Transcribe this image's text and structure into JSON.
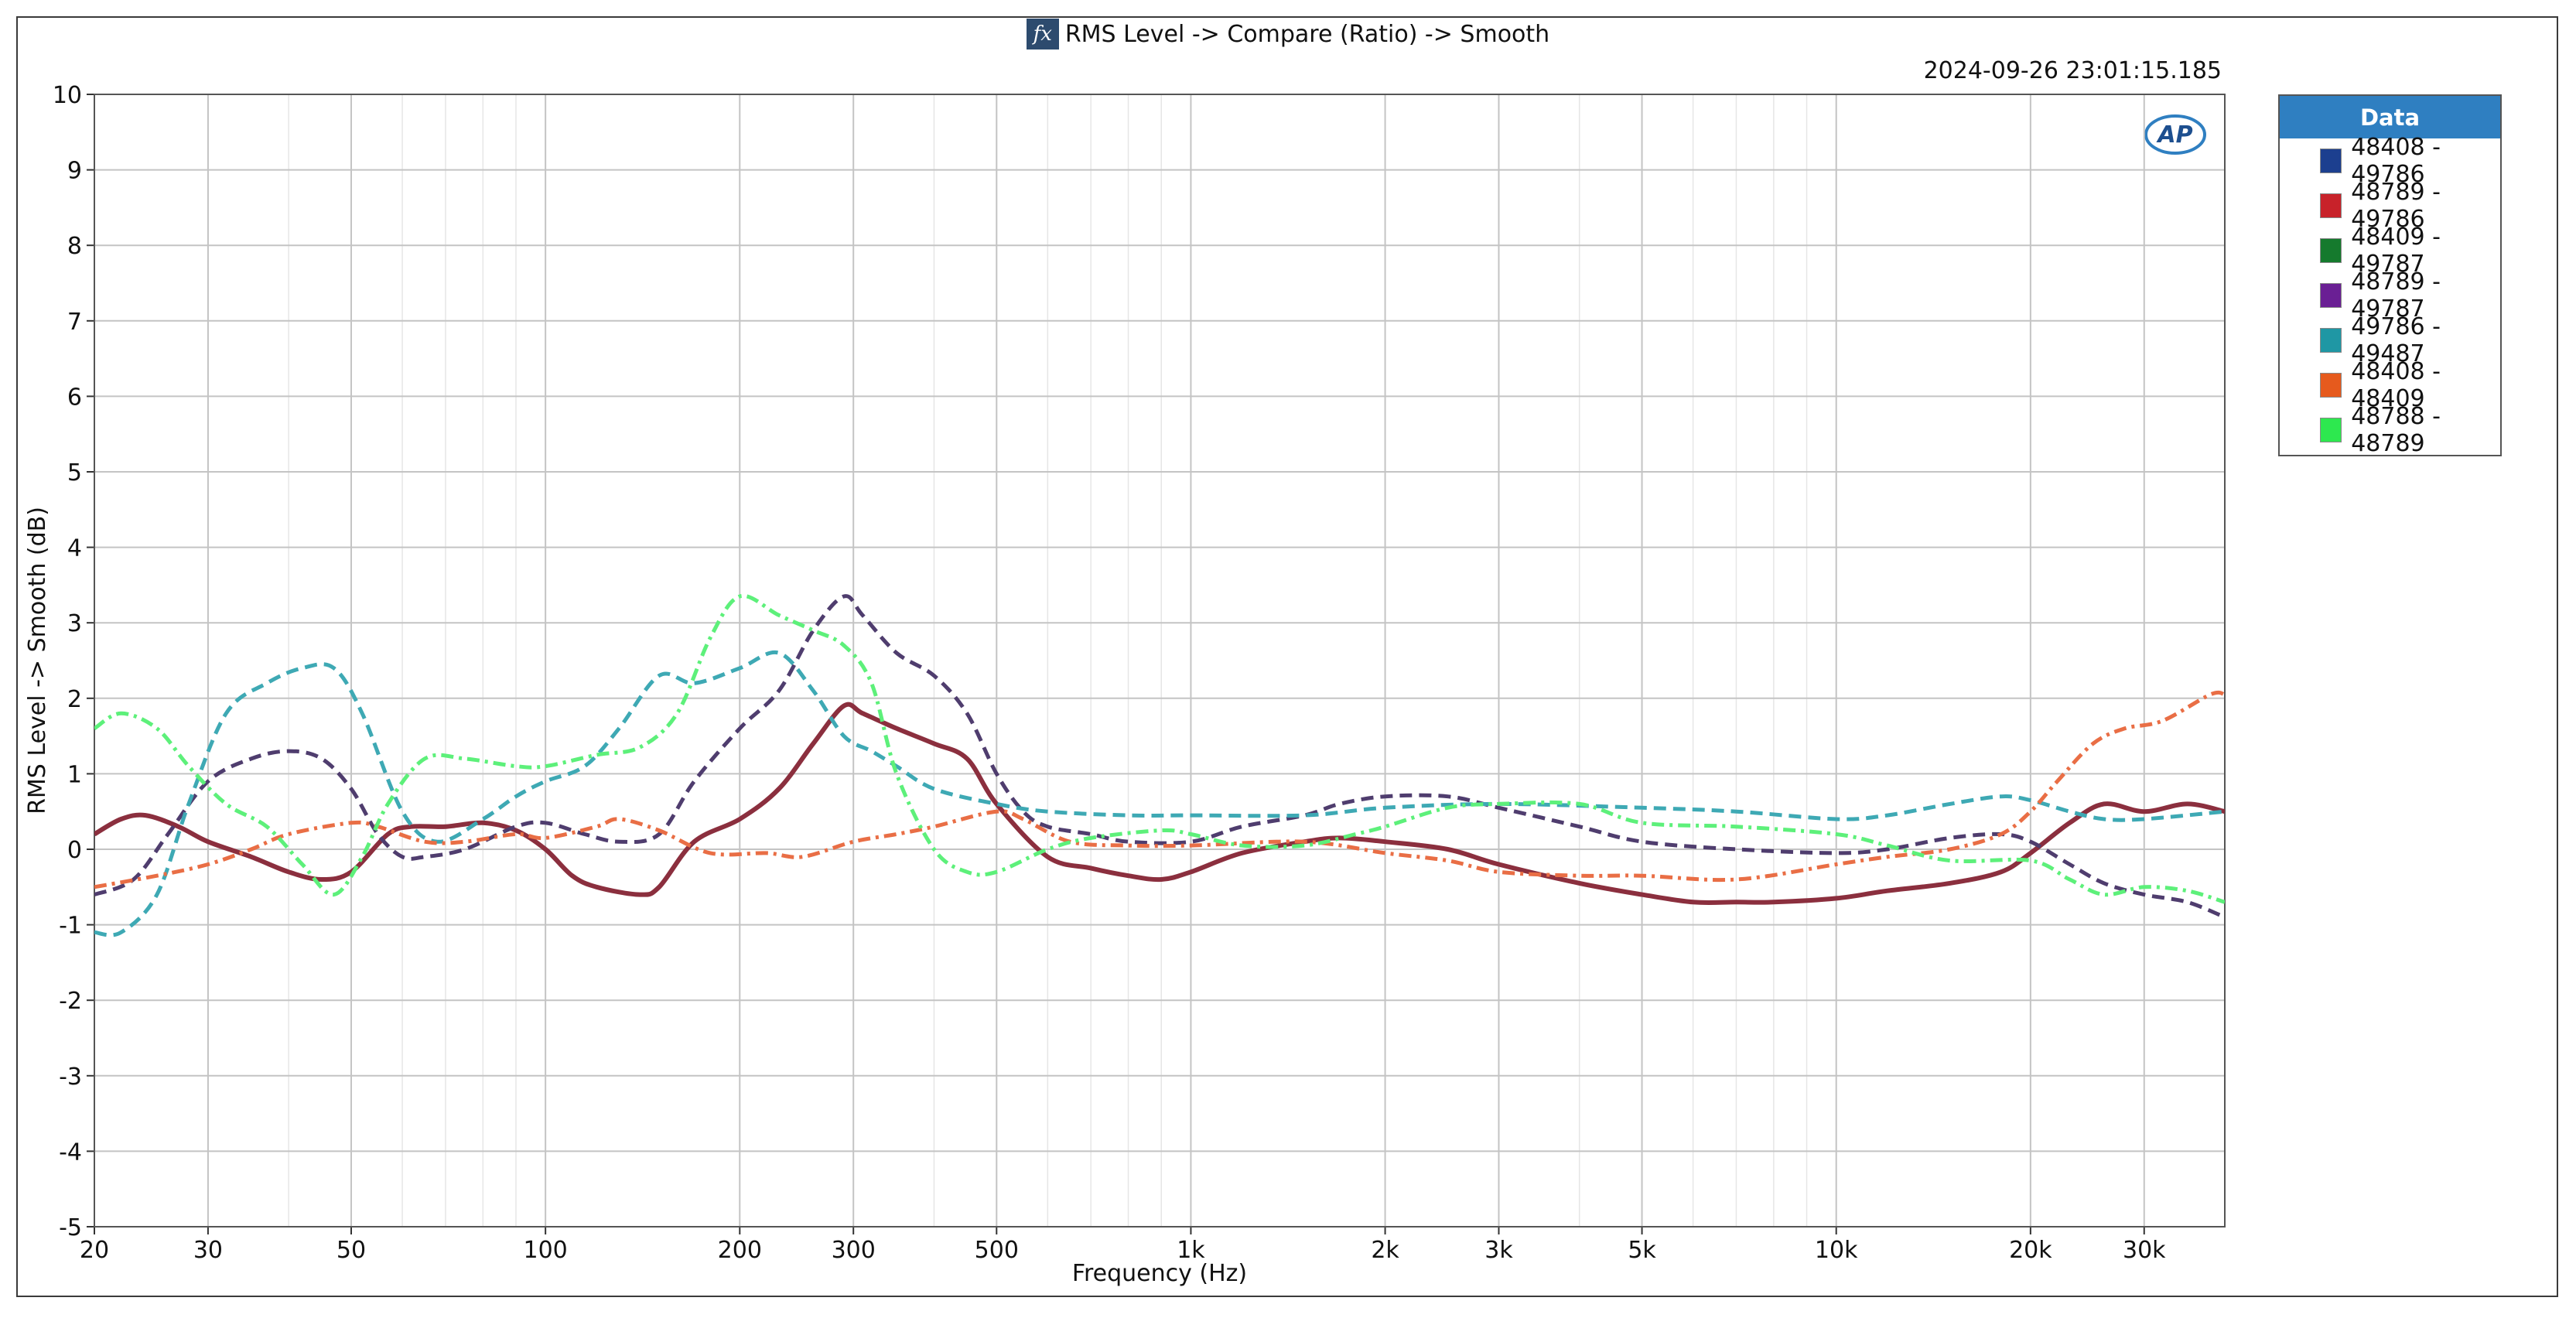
{
  "title": "RMS Level -> Compare (Ratio) -> Smooth",
  "timestamp": "2024-09-26 23:01:15.185",
  "logo_text": "AP",
  "legend": {
    "header": "Data",
    "items": [
      {
        "label": "48408 - 49786",
        "color": "#1c3f8f"
      },
      {
        "label": "48789 - 49786",
        "color": "#c8222a"
      },
      {
        "label": "48409 - 49787",
        "color": "#157a2d"
      },
      {
        "label": "48789 - 49787",
        "color": "#6a1f94"
      },
      {
        "label": "49786 - 49487",
        "color": "#1f97a4"
      },
      {
        "label": "48408 - 48409",
        "color": "#e65a1d"
      },
      {
        "label": "48788 - 48789",
        "color": "#2de84f"
      }
    ]
  },
  "chart_data": {
    "type": "line",
    "xlabel": "Frequency (Hz)",
    "ylabel": "RMS Level -> Smooth (dB)",
    "x_scale": "log",
    "xlim": [
      20,
      40000
    ],
    "ylim": [
      -5,
      10
    ],
    "grid": true,
    "legend_position": "right",
    "x_ticks": [
      {
        "value": 20,
        "label": "20"
      },
      {
        "value": 30,
        "label": "30"
      },
      {
        "value": 50,
        "label": "50"
      },
      {
        "value": 100,
        "label": "100"
      },
      {
        "value": 200,
        "label": "200"
      },
      {
        "value": 300,
        "label": "300"
      },
      {
        "value": 500,
        "label": "500"
      },
      {
        "value": 1000,
        "label": "1k"
      },
      {
        "value": 2000,
        "label": "2k"
      },
      {
        "value": 3000,
        "label": "3k"
      },
      {
        "value": 5000,
        "label": "5k"
      },
      {
        "value": 10000,
        "label": "10k"
      },
      {
        "value": 20000,
        "label": "20k"
      },
      {
        "value": 30000,
        "label": "30k"
      }
    ],
    "y_ticks": [
      {
        "value": 10,
        "label": "10"
      },
      {
        "value": 9,
        "label": "9"
      },
      {
        "value": 8,
        "label": "8"
      },
      {
        "value": 7,
        "label": "7"
      },
      {
        "value": 6,
        "label": "6"
      },
      {
        "value": 5,
        "label": "5"
      },
      {
        "value": 4,
        "label": "4"
      },
      {
        "value": 3,
        "label": "3"
      },
      {
        "value": 2,
        "label": "2"
      },
      {
        "value": 1,
        "label": "1"
      },
      {
        "value": 0,
        "label": "0"
      },
      {
        "value": -1,
        "label": "-1"
      },
      {
        "value": -2,
        "label": "-2"
      },
      {
        "value": -3,
        "label": "-3"
      },
      {
        "value": -4,
        "label": "-4"
      },
      {
        "value": -5,
        "label": "-5"
      }
    ],
    "series": [
      {
        "name": "48789 - 49786",
        "color": "#8b2f3e",
        "dash": "solid",
        "points": [
          [
            20,
            0.2
          ],
          [
            22,
            0.4
          ],
          [
            24,
            0.45
          ],
          [
            27,
            0.3
          ],
          [
            30,
            0.1
          ],
          [
            35,
            -0.1
          ],
          [
            40,
            -0.3
          ],
          [
            45,
            -0.4
          ],
          [
            50,
            -0.3
          ],
          [
            57,
            0.2
          ],
          [
            62,
            0.3
          ],
          [
            70,
            0.3
          ],
          [
            80,
            0.35
          ],
          [
            90,
            0.25
          ],
          [
            100,
            0.0
          ],
          [
            110,
            -0.35
          ],
          [
            120,
            -0.5
          ],
          [
            140,
            -0.6
          ],
          [
            150,
            -0.5
          ],
          [
            170,
            0.1
          ],
          [
            200,
            0.4
          ],
          [
            230,
            0.8
          ],
          [
            260,
            1.4
          ],
          [
            290,
            1.9
          ],
          [
            310,
            1.8
          ],
          [
            350,
            1.6
          ],
          [
            400,
            1.4
          ],
          [
            450,
            1.2
          ],
          [
            500,
            0.6
          ],
          [
            600,
            -0.1
          ],
          [
            700,
            -0.25
          ],
          [
            800,
            -0.35
          ],
          [
            900,
            -0.4
          ],
          [
            1000,
            -0.3
          ],
          [
            1200,
            -0.05
          ],
          [
            1500,
            0.1
          ],
          [
            1700,
            0.15
          ],
          [
            2000,
            0.1
          ],
          [
            2500,
            0.0
          ],
          [
            3000,
            -0.2
          ],
          [
            4000,
            -0.45
          ],
          [
            5000,
            -0.6
          ],
          [
            6000,
            -0.7
          ],
          [
            7000,
            -0.7
          ],
          [
            8000,
            -0.7
          ],
          [
            10000,
            -0.65
          ],
          [
            12000,
            -0.55
          ],
          [
            15000,
            -0.45
          ],
          [
            18000,
            -0.3
          ],
          [
            20000,
            -0.05
          ],
          [
            23000,
            0.35
          ],
          [
            26000,
            0.6
          ],
          [
            30000,
            0.5
          ],
          [
            35000,
            0.6
          ],
          [
            40000,
            0.5
          ]
        ]
      },
      {
        "name": "48789 - 49787",
        "color": "#4f3d6e",
        "dash": "dashed",
        "points": [
          [
            20,
            -0.6
          ],
          [
            23,
            -0.4
          ],
          [
            26,
            0.2
          ],
          [
            30,
            0.9
          ],
          [
            35,
            1.2
          ],
          [
            40,
            1.3
          ],
          [
            45,
            1.2
          ],
          [
            50,
            0.8
          ],
          [
            55,
            0.2
          ],
          [
            60,
            -0.1
          ],
          [
            65,
            -0.1
          ],
          [
            75,
            0.0
          ],
          [
            90,
            0.3
          ],
          [
            100,
            0.35
          ],
          [
            115,
            0.2
          ],
          [
            130,
            0.1
          ],
          [
            150,
            0.2
          ],
          [
            170,
            0.9
          ],
          [
            200,
            1.6
          ],
          [
            230,
            2.1
          ],
          [
            260,
            2.9
          ],
          [
            290,
            3.35
          ],
          [
            310,
            3.1
          ],
          [
            350,
            2.6
          ],
          [
            400,
            2.3
          ],
          [
            450,
            1.8
          ],
          [
            500,
            1.0
          ],
          [
            550,
            0.5
          ],
          [
            600,
            0.3
          ],
          [
            700,
            0.2
          ],
          [
            800,
            0.1
          ],
          [
            1000,
            0.1
          ],
          [
            1200,
            0.3
          ],
          [
            1500,
            0.45
          ],
          [
            1700,
            0.6
          ],
          [
            2000,
            0.7
          ],
          [
            2500,
            0.7
          ],
          [
            3000,
            0.55
          ],
          [
            4000,
            0.3
          ],
          [
            5000,
            0.1
          ],
          [
            7000,
            0.0
          ],
          [
            10000,
            -0.05
          ],
          [
            12000,
            0.0
          ],
          [
            15000,
            0.15
          ],
          [
            18000,
            0.2
          ],
          [
            20000,
            0.1
          ],
          [
            23000,
            -0.2
          ],
          [
            26000,
            -0.45
          ],
          [
            30000,
            -0.6
          ],
          [
            35000,
            -0.7
          ],
          [
            40000,
            -0.9
          ]
        ]
      },
      {
        "name": "49786 - 49487",
        "color": "#3ea9b4",
        "dash": "dashed",
        "points": [
          [
            20,
            -1.1
          ],
          [
            22,
            -1.1
          ],
          [
            25,
            -0.6
          ],
          [
            28,
            0.6
          ],
          [
            32,
            1.8
          ],
          [
            37,
            2.2
          ],
          [
            42,
            2.4
          ],
          [
            47,
            2.4
          ],
          [
            52,
            1.8
          ],
          [
            60,
            0.5
          ],
          [
            68,
            0.1
          ],
          [
            80,
            0.4
          ],
          [
            90,
            0.7
          ],
          [
            100,
            0.9
          ],
          [
            115,
            1.1
          ],
          [
            130,
            1.6
          ],
          [
            150,
            2.3
          ],
          [
            170,
            2.2
          ],
          [
            200,
            2.4
          ],
          [
            230,
            2.6
          ],
          [
            260,
            2.1
          ],
          [
            290,
            1.5
          ],
          [
            320,
            1.3
          ],
          [
            350,
            1.1
          ],
          [
            400,
            0.8
          ],
          [
            500,
            0.6
          ],
          [
            600,
            0.5
          ],
          [
            800,
            0.45
          ],
          [
            1000,
            0.45
          ],
          [
            1500,
            0.45
          ],
          [
            2000,
            0.55
          ],
          [
            3000,
            0.6
          ],
          [
            5000,
            0.55
          ],
          [
            7000,
            0.5
          ],
          [
            10000,
            0.4
          ],
          [
            12000,
            0.45
          ],
          [
            15000,
            0.6
          ],
          [
            18000,
            0.7
          ],
          [
            20000,
            0.65
          ],
          [
            23000,
            0.5
          ],
          [
            26000,
            0.4
          ],
          [
            30000,
            0.4
          ],
          [
            40000,
            0.5
          ]
        ]
      },
      {
        "name": "48408 - 48409",
        "color": "#e96e45",
        "dash": "dashdot",
        "points": [
          [
            20,
            -0.5
          ],
          [
            25,
            -0.35
          ],
          [
            30,
            -0.2
          ],
          [
            35,
            0.0
          ],
          [
            40,
            0.2
          ],
          [
            50,
            0.35
          ],
          [
            55,
            0.3
          ],
          [
            65,
            0.1
          ],
          [
            75,
            0.1
          ],
          [
            90,
            0.2
          ],
          [
            100,
            0.15
          ],
          [
            120,
            0.3
          ],
          [
            130,
            0.4
          ],
          [
            150,
            0.25
          ],
          [
            180,
            -0.05
          ],
          [
            220,
            -0.05
          ],
          [
            250,
            -0.1
          ],
          [
            300,
            0.1
          ],
          [
            350,
            0.2
          ],
          [
            400,
            0.3
          ],
          [
            500,
            0.5
          ],
          [
            550,
            0.4
          ],
          [
            650,
            0.1
          ],
          [
            800,
            0.05
          ],
          [
            1000,
            0.05
          ],
          [
            1500,
            0.1
          ],
          [
            2000,
            -0.05
          ],
          [
            2500,
            -0.15
          ],
          [
            3000,
            -0.3
          ],
          [
            4000,
            -0.35
          ],
          [
            5000,
            -0.35
          ],
          [
            7000,
            -0.4
          ],
          [
            10000,
            -0.2
          ],
          [
            12000,
            -0.1
          ],
          [
            15000,
            0.0
          ],
          [
            18000,
            0.2
          ],
          [
            20000,
            0.5
          ],
          [
            22000,
            0.9
          ],
          [
            25000,
            1.4
          ],
          [
            28000,
            1.6
          ],
          [
            32000,
            1.7
          ],
          [
            38000,
            2.05
          ],
          [
            40000,
            2.05
          ]
        ]
      },
      {
        "name": "48788 - 48789",
        "color": "#5df07a",
        "dash": "dashdot",
        "points": [
          [
            20,
            1.6
          ],
          [
            22,
            1.8
          ],
          [
            25,
            1.6
          ],
          [
            28,
            1.1
          ],
          [
            32,
            0.6
          ],
          [
            37,
            0.3
          ],
          [
            42,
            -0.2
          ],
          [
            47,
            -0.6
          ],
          [
            52,
            -0.1
          ],
          [
            57,
            0.6
          ],
          [
            65,
            1.2
          ],
          [
            75,
            1.2
          ],
          [
            90,
            1.1
          ],
          [
            100,
            1.1
          ],
          [
            120,
            1.25
          ],
          [
            140,
            1.35
          ],
          [
            160,
            1.8
          ],
          [
            180,
            2.8
          ],
          [
            200,
            3.35
          ],
          [
            230,
            3.1
          ],
          [
            260,
            2.9
          ],
          [
            290,
            2.7
          ],
          [
            320,
            2.2
          ],
          [
            350,
            1.0
          ],
          [
            400,
            0.0
          ],
          [
            450,
            -0.3
          ],
          [
            500,
            -0.3
          ],
          [
            600,
            0.0
          ],
          [
            700,
            0.15
          ],
          [
            900,
            0.25
          ],
          [
            1000,
            0.2
          ],
          [
            1200,
            0.05
          ],
          [
            1500,
            0.05
          ],
          [
            1800,
            0.2
          ],
          [
            2000,
            0.3
          ],
          [
            2500,
            0.55
          ],
          [
            3000,
            0.6
          ],
          [
            4000,
            0.6
          ],
          [
            5000,
            0.35
          ],
          [
            7000,
            0.3
          ],
          [
            10000,
            0.2
          ],
          [
            12000,
            0.05
          ],
          [
            15000,
            -0.15
          ],
          [
            20000,
            -0.15
          ],
          [
            23000,
            -0.4
          ],
          [
            26000,
            -0.6
          ],
          [
            30000,
            -0.5
          ],
          [
            35000,
            -0.55
          ],
          [
            40000,
            -0.7
          ]
        ]
      }
    ]
  }
}
